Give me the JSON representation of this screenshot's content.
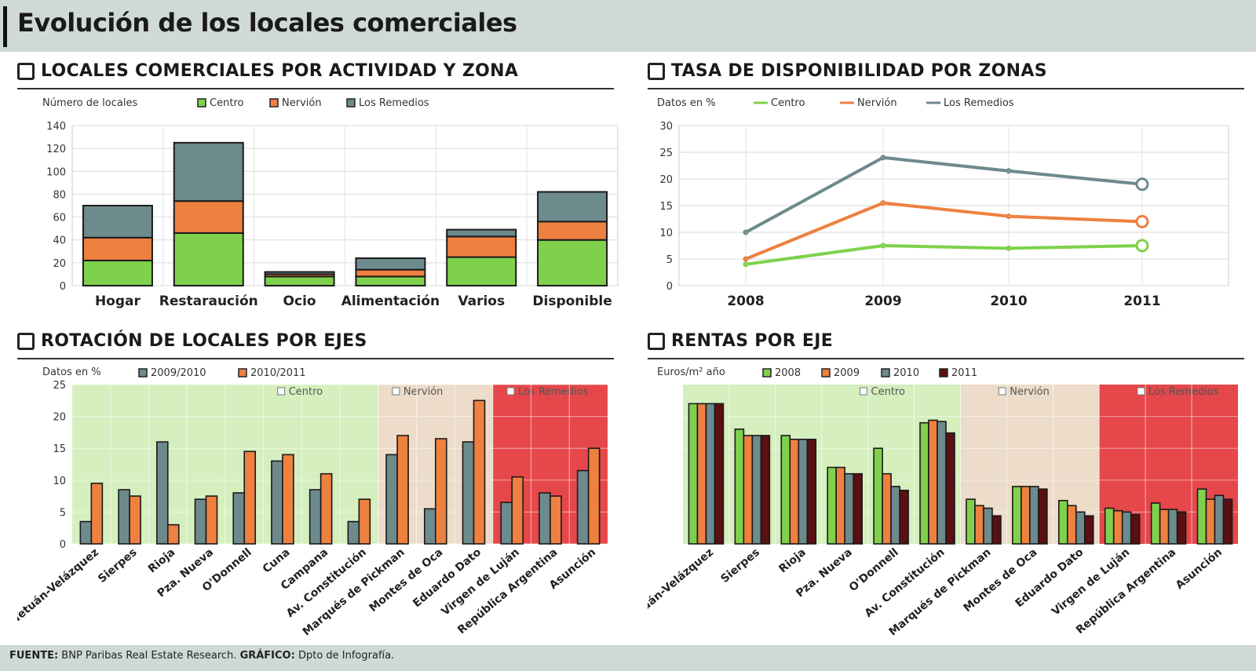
{
  "title": "Evolución de los locales comerciales",
  "colors": {
    "green": "#7fd14c",
    "orange": "#ee8040",
    "gray": "#6d8a8c",
    "dark": "#3c3c3c",
    "maroon": "#5a0f12",
    "bgGreen": "#d5efbf",
    "bgTan": "#ecdcc9",
    "bgRed": "#e5474b"
  },
  "charts": {
    "actividad": {
      "heading": "LOCALES COMERCIALES POR ACTIVIDAD Y ZONA",
      "unit_label": "Número de locales",
      "legend": [
        "Centro",
        "Nervión",
        "Los Remedios"
      ]
    },
    "disponibilidad": {
      "heading": "TASA DE DISPONIBILIDAD POR ZONAS",
      "unit_label": "Datos en %",
      "legend": [
        "Centro",
        "Nervión",
        "Los Remedios"
      ]
    },
    "rotacion": {
      "heading": "ROTACIÓN DE LOCALES POR EJES",
      "unit_label": "Datos en %",
      "legend": [
        "2009/2010",
        "2010/2011"
      ],
      "zones": [
        "Centro",
        "Nervión",
        "Los Remedios"
      ]
    },
    "rentas": {
      "heading": "RENTAS POR EJE",
      "unit_label": "Euros/m² año",
      "legend": [
        "2008",
        "2009",
        "2010",
        "2011"
      ],
      "zones": [
        "Centro",
        "Nervión",
        "Los Remedios"
      ]
    }
  },
  "footer": {
    "source_label": "FUENTE:",
    "source": "BNP Paribas Real Estate Research.",
    "graphic_label": "GRÁFICO:",
    "graphic": "Dpto de Infografía."
  },
  "chart_data": [
    {
      "id": "actividad",
      "type": "bar",
      "stacked": true,
      "title": "LOCALES COMERCIALES POR ACTIVIDAD Y ZONA",
      "ylabel": "Número de locales",
      "categories": [
        "Hogar",
        "Restaraución",
        "Ocio",
        "Alimentación",
        "Varios",
        "Disponible"
      ],
      "series": [
        {
          "name": "Centro",
          "values": [
            22,
            46,
            8,
            8,
            25,
            40
          ]
        },
        {
          "name": "Nervión",
          "values": [
            20,
            28,
            2,
            6,
            18,
            16
          ]
        },
        {
          "name": "Los Remedios",
          "values": [
            28,
            51,
            2,
            10,
            6,
            26
          ]
        }
      ],
      "ylim": [
        0,
        140
      ],
      "yticks": [
        0,
        20,
        40,
        60,
        80,
        100,
        120,
        140
      ],
      "grid": true
    },
    {
      "id": "disponibilidad",
      "type": "line",
      "title": "TASA DE DISPONIBILIDAD POR ZONAS",
      "ylabel": "Datos en %",
      "x": [
        "2008",
        "2009",
        "2010",
        "2011"
      ],
      "series": [
        {
          "name": "Centro",
          "values": [
            4,
            7.5,
            7,
            7.5
          ]
        },
        {
          "name": "Nervión",
          "values": [
            5,
            15.5,
            13,
            12
          ]
        },
        {
          "name": "Los Remedios",
          "values": [
            10,
            24,
            21.5,
            19
          ]
        }
      ],
      "ylim": [
        0,
        30
      ],
      "yticks": [
        0,
        5,
        10,
        15,
        20,
        25,
        30
      ],
      "grid": true
    },
    {
      "id": "rotacion",
      "type": "bar",
      "title": "ROTACIÓN DE LOCALES POR EJES",
      "ylabel": "Datos en %",
      "categories": [
        "Tetuán-Velázquez",
        "Sierpes",
        "Rioja",
        "Pza. Nueva",
        "O'Donnell",
        "Cuna",
        "Campana",
        "Av. Constitución",
        "Marqués de Pickman",
        "Montes de Oca",
        "Eduardo Dato",
        "Virgen de Luján",
        "República Argentina",
        "Asunción"
      ],
      "series": [
        {
          "name": "2009/2010",
          "values": [
            3.5,
            8.5,
            16,
            7,
            8,
            13,
            8.5,
            3.5,
            14,
            5.5,
            16,
            6.5,
            8,
            11.5
          ]
        },
        {
          "name": "2010/2011",
          "values": [
            9.5,
            7.5,
            3,
            7.5,
            14.5,
            14,
            11,
            7,
            17,
            16.5,
            22.5,
            10.5,
            7.5,
            15
          ]
        }
      ],
      "zones": [
        {
          "name": "Centro",
          "from": 0,
          "to": 7
        },
        {
          "name": "Nervión",
          "from": 8,
          "to": 10
        },
        {
          "name": "Los Remedios",
          "from": 11,
          "to": 13
        }
      ],
      "ylim": [
        0,
        25
      ],
      "yticks": [
        0,
        5,
        10,
        15,
        20,
        25
      ],
      "grid": true
    },
    {
      "id": "rentas",
      "type": "bar",
      "title": "RENTAS POR EJE",
      "ylabel": "Euros/m² año",
      "categories": [
        "Tetuán-Velázquez",
        "Sierpes",
        "Rioja",
        "Pza. Nueva",
        "O'Donnell",
        "Av. Constitución",
        "Marqués de Pickman",
        "Montes de Oca",
        "Eduardo Dato",
        "Virgen de Luján",
        "República Argentina",
        "Asunción"
      ],
      "series": [
        {
          "name": "2008",
          "values": [
            110,
            90,
            85,
            60,
            75,
            95,
            35,
            45,
            34,
            28,
            32,
            43
          ]
        },
        {
          "name": "2009",
          "values": [
            110,
            85,
            82,
            60,
            55,
            97,
            30,
            45,
            30,
            26,
            27,
            35
          ]
        },
        {
          "name": "2010",
          "values": [
            110,
            85,
            82,
            55,
            45,
            96,
            28,
            45,
            25,
            25,
            27,
            38
          ]
        },
        {
          "name": "2011",
          "values": [
            110,
            85,
            82,
            55,
            42,
            87,
            22,
            43,
            22,
            23,
            25,
            35
          ]
        }
      ],
      "zones": [
        {
          "name": "Centro",
          "from": 0,
          "to": 5
        },
        {
          "name": "Nervión",
          "from": 6,
          "to": 8
        },
        {
          "name": "Los Remedios",
          "from": 9,
          "to": 11
        }
      ],
      "ylim": [
        0,
        125
      ],
      "grid": true
    }
  ]
}
